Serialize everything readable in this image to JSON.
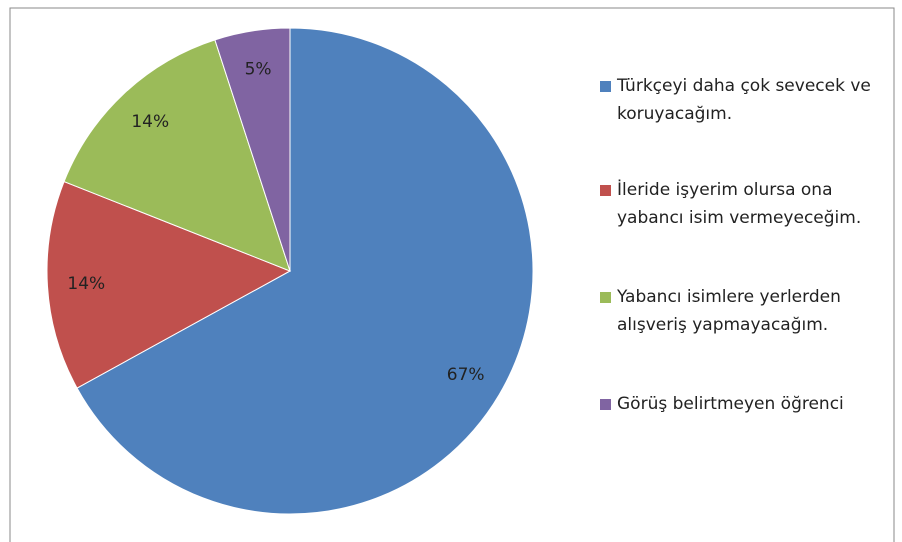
{
  "chart_data": {
    "type": "pie",
    "categories": [
      "Türkçeyi daha çok sevecek ve koruyacağım.",
      "İleride işyerim olursa ona yabancı isim vermeyeceğim.",
      "Yabancı isimlere yerlerden alışveriş yapmayacağım.",
      "Görüş belirtmeyen öğrenci"
    ],
    "values": [
      67,
      14,
      14,
      5
    ],
    "value_labels": [
      "67%",
      "14%",
      "14%",
      "5%"
    ],
    "colors": [
      "#4f81bd",
      "#c0504d",
      "#9bbb59",
      "#8064a2"
    ],
    "legend": "right"
  }
}
